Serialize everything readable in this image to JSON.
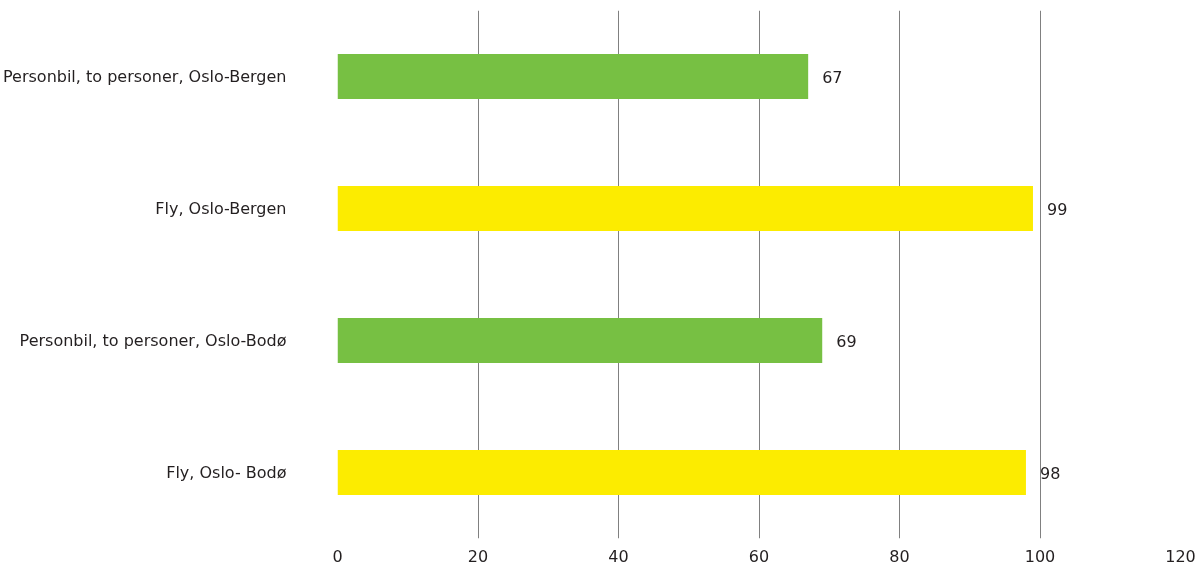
{
  "chart_data": {
    "type": "bar",
    "orientation": "horizontal",
    "categories": [
      "Personbil, to personer, Oslo-Bergen",
      "Fly, Oslo-Bergen",
      "Personbil, to personer, Oslo-Bodø",
      "Fly, Oslo- Bodø"
    ],
    "values": [
      67,
      99,
      69,
      98
    ],
    "colors": [
      "#77c043",
      "#fcec00",
      "#77c043",
      "#fcec00"
    ],
    "xlim": [
      0,
      120
    ],
    "xticks": [
      0,
      20,
      40,
      60,
      80,
      100,
      120
    ],
    "grid": "x",
    "data_labels": true
  }
}
